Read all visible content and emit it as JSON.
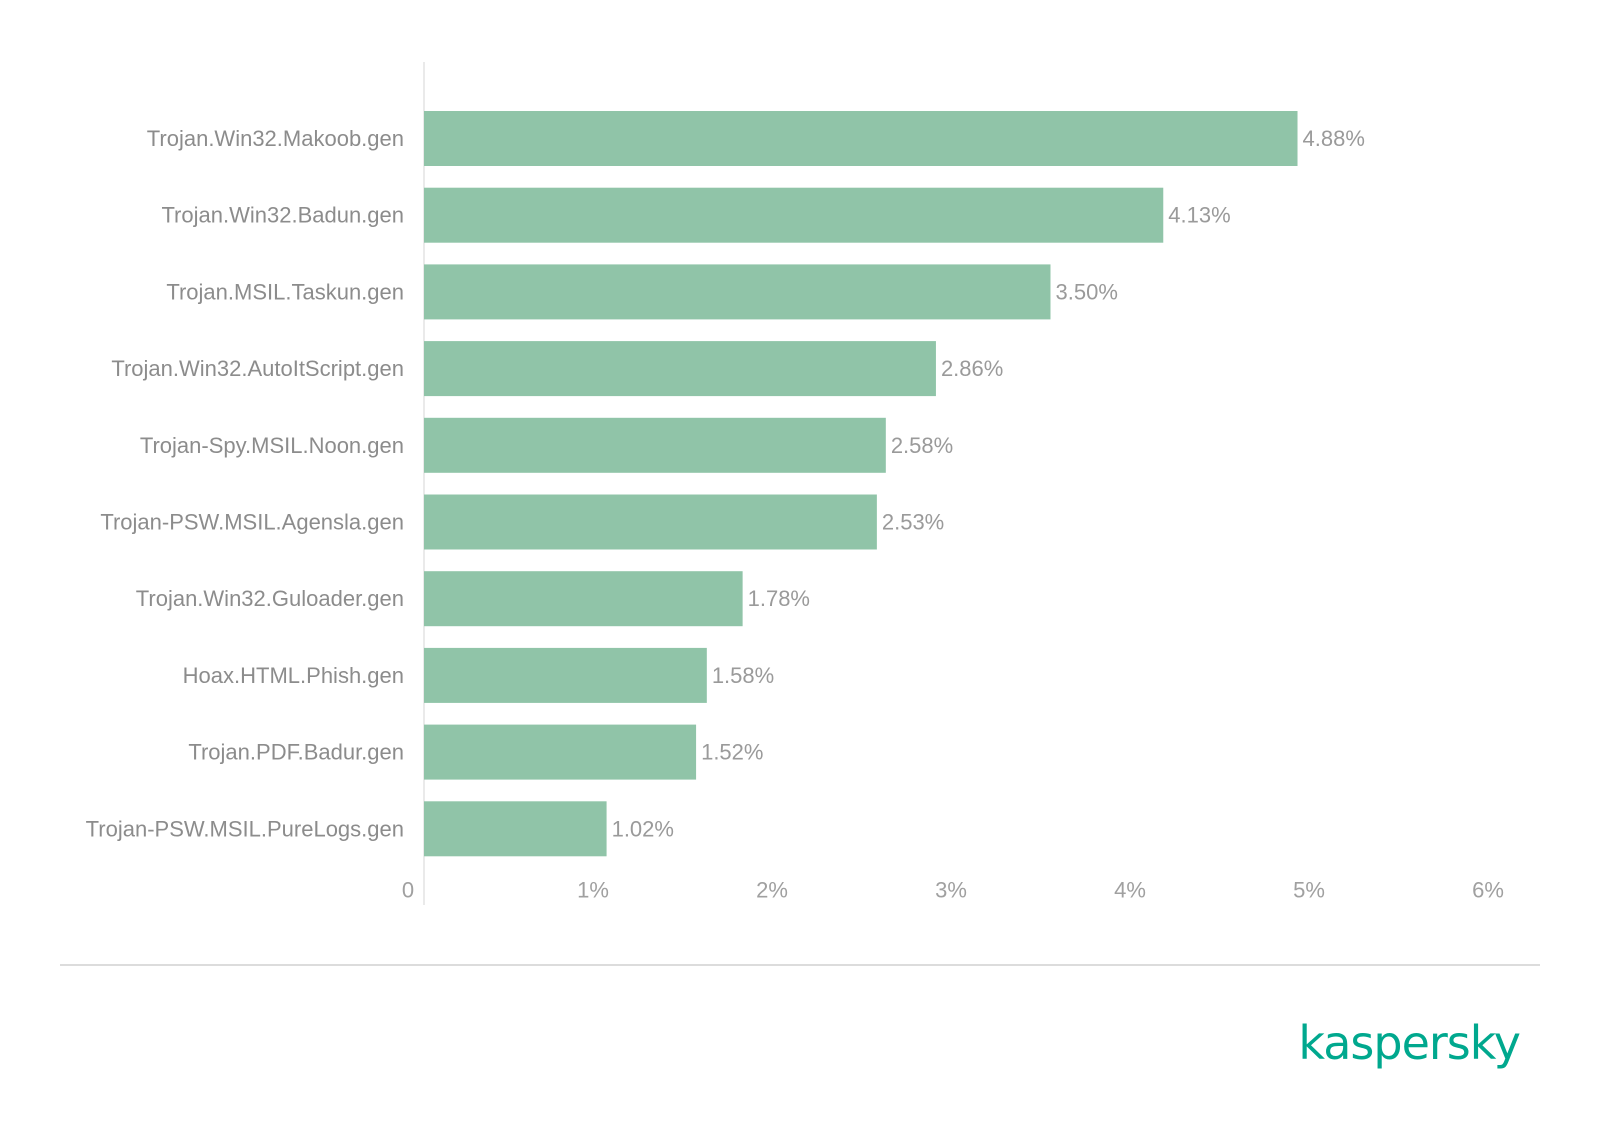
{
  "chart_data": {
    "type": "bar",
    "orientation": "horizontal",
    "categories": [
      "Trojan.Win32.Makoob.gen",
      "Trojan.Win32.Badun.gen",
      "Trojan.MSIL.Taskun.gen",
      "Trojan.Win32.AutoItScript.gen",
      "Trojan-Spy.MSIL.Noon.gen",
      "Trojan-PSW.MSIL.Agensla.gen",
      "Trojan.Win32.Guloader.gen",
      "Hoax.HTML.Phish.gen",
      "Trojan.PDF.Badur.gen",
      "Trojan-PSW.MSIL.PureLogs.gen"
    ],
    "values": [
      4.88,
      4.13,
      3.5,
      2.86,
      2.58,
      2.53,
      1.78,
      1.58,
      1.52,
      1.02
    ],
    "value_labels": [
      "4.88%",
      "4.13%",
      "3.50%",
      "2.86%",
      "2.58%",
      "2.53%",
      "1.78%",
      "1.58%",
      "1.52%",
      "1.02%"
    ],
    "xlim": [
      0,
      6
    ],
    "xticks": [
      0,
      1,
      2,
      3,
      4,
      5,
      6
    ],
    "xtick_labels": [
      "0",
      "1%",
      "2%",
      "3%",
      "4%",
      "5%",
      "6%"
    ],
    "bar_color": "#90c4a8",
    "grid": false
  },
  "brand": {
    "name": "kaspersky",
    "color": "#00a88e"
  }
}
